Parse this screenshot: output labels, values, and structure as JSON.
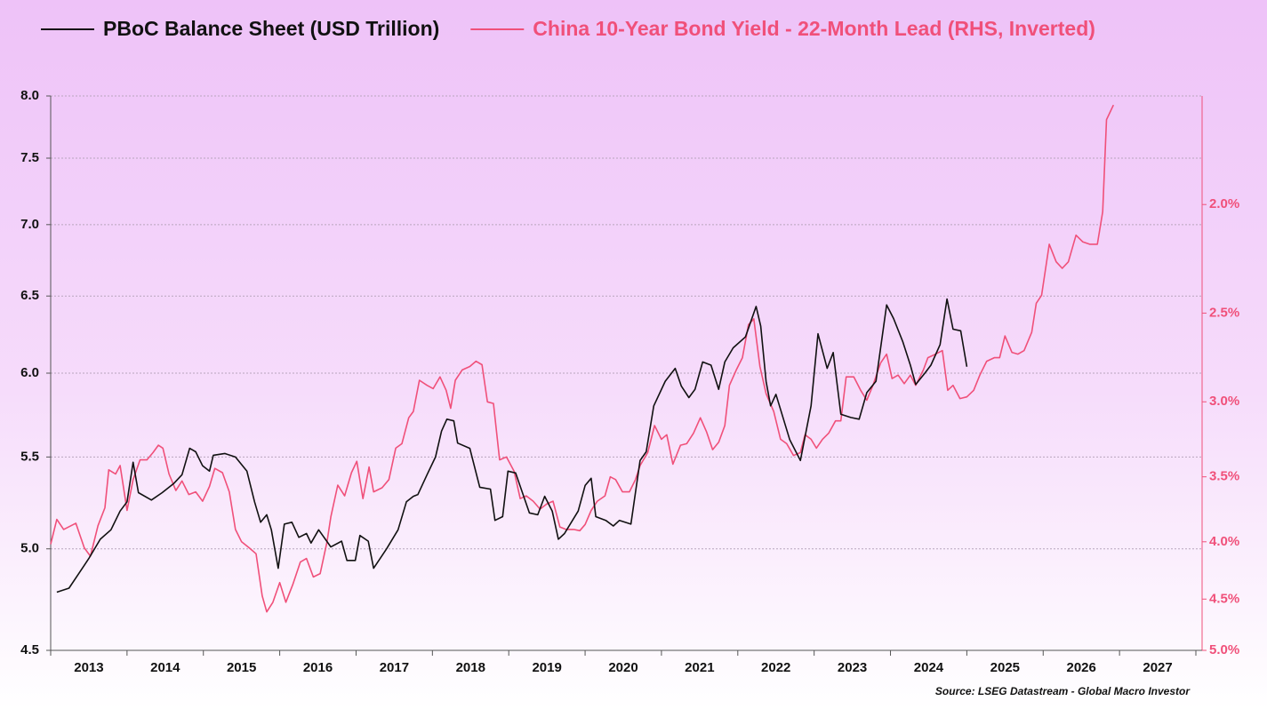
{
  "chart_data": {
    "type": "line",
    "source": "Source: LSEG Datastream - Global Macro Investor",
    "legend": "top",
    "grid": true,
    "xlim": [
      2013,
      2028
    ],
    "xticks": [
      2013,
      2014,
      2015,
      2016,
      2017,
      2018,
      2019,
      2020,
      2021,
      2022,
      2023,
      2024,
      2025,
      2026,
      2027,
      2028
    ],
    "x_labels": [
      "2013",
      "2014",
      "2015",
      "2016",
      "2017",
      "2018",
      "2019",
      "2020",
      "2021",
      "2022",
      "2023",
      "2024",
      "2025",
      "2026",
      "2027"
    ],
    "ylim": [
      4.5,
      8.0
    ],
    "ylog": true,
    "yticks": [
      4.5,
      {
        "value": 5.0,
        "label": "5.0"
      },
      5.5,
      {
        "value": 6.0,
        "label": "6.0"
      },
      6.5,
      {
        "value": 7.0,
        "label": "7.0"
      },
      7.5,
      {
        "value": 8.0,
        "label": "8.0"
      }
    ],
    "y2lim": [
      1.6,
      5.0
    ],
    "y2_log": true,
    "y2_inverted": true,
    "y2ticks": [
      {
        "value": 2.0,
        "label": "2.0%"
      },
      {
        "value": 2.5,
        "label": "2.5%"
      },
      {
        "value": 3.0,
        "label": "3.0%"
      },
      {
        "value": 3.5,
        "label": "3.5%"
      },
      {
        "value": 4.0,
        "label": "4.0%"
      },
      {
        "value": 4.5,
        "label": "4.5%"
      },
      {
        "value": 5.0,
        "label": "5.0%"
      }
    ],
    "series": [
      {
        "name": "PBoC Balance Sheet (USD Trillion)",
        "color": "#111111",
        "axis": "y",
        "x": [
          2013.08,
          2013.24,
          2013.38,
          2013.5,
          2013.65,
          2013.79,
          2013.91,
          2014.0,
          2014.08,
          2014.15,
          2014.32,
          2014.46,
          2014.61,
          2014.72,
          2014.82,
          2014.9,
          2014.99,
          2015.08,
          2015.13,
          2015.28,
          2015.42,
          2015.57,
          2015.67,
          2015.75,
          2015.83,
          2015.89,
          2015.98,
          2016.06,
          2016.16,
          2016.25,
          2016.35,
          2016.41,
          2016.51,
          2016.67,
          2016.81,
          2016.88,
          2016.99,
          2017.05,
          2017.16,
          2017.23,
          2017.4,
          2017.55,
          2017.66,
          2017.75,
          2017.81,
          2017.93,
          2018.04,
          2018.12,
          2018.19,
          2018.28,
          2018.33,
          2018.49,
          2018.62,
          2018.76,
          2018.82,
          2018.92,
          2018.99,
          2019.09,
          2019.27,
          2019.38,
          2019.47,
          2019.57,
          2019.65,
          2019.73,
          2019.91,
          2020.0,
          2020.08,
          2020.14,
          2020.27,
          2020.37,
          2020.45,
          2020.6,
          2020.72,
          2020.8,
          2020.9,
          2021.05,
          2021.18,
          2021.26,
          2021.36,
          2021.44,
          2021.54,
          2021.65,
          2021.75,
          2021.83,
          2021.94,
          2022.1,
          2022.24,
          2022.3,
          2022.37,
          2022.43,
          2022.5,
          2022.68,
          2022.82,
          2022.96,
          2023.05,
          2023.17,
          2023.25,
          2023.35,
          2023.48,
          2023.59,
          2023.69,
          2023.81,
          2023.95,
          2024.04,
          2024.16,
          2024.26,
          2024.33,
          2024.45,
          2024.53,
          2024.65,
          2024.74,
          2024.82,
          2024.92,
          2025.0
        ],
        "values": [
          4.78,
          4.8,
          4.88,
          4.95,
          5.05,
          5.1,
          5.2,
          5.25,
          5.47,
          5.3,
          5.26,
          5.3,
          5.35,
          5.4,
          5.55,
          5.53,
          5.45,
          5.42,
          5.51,
          5.52,
          5.5,
          5.42,
          5.25,
          5.14,
          5.18,
          5.1,
          4.9,
          5.13,
          5.14,
          5.06,
          5.08,
          5.03,
          5.1,
          5.01,
          5.04,
          4.94,
          4.94,
          5.07,
          5.04,
          4.9,
          5.0,
          5.1,
          5.25,
          5.28,
          5.29,
          5.4,
          5.5,
          5.65,
          5.72,
          5.71,
          5.58,
          5.55,
          5.33,
          5.32,
          5.15,
          5.17,
          5.42,
          5.41,
          5.19,
          5.18,
          5.28,
          5.2,
          5.05,
          5.08,
          5.2,
          5.34,
          5.38,
          5.17,
          5.15,
          5.12,
          5.15,
          5.13,
          5.48,
          5.53,
          5.8,
          5.95,
          6.03,
          5.92,
          5.85,
          5.9,
          6.07,
          6.05,
          5.9,
          6.07,
          6.16,
          6.23,
          6.43,
          6.3,
          5.95,
          5.8,
          5.87,
          5.6,
          5.48,
          5.8,
          6.25,
          6.03,
          6.13,
          5.75,
          5.73,
          5.72,
          5.88,
          5.95,
          6.44,
          6.35,
          6.2,
          6.05,
          5.93,
          6.0,
          6.05,
          6.18,
          6.48,
          6.28,
          6.27,
          6.04
        ]
      },
      {
        "name": "China 10-Year Bond Yield - 22-Month Lead (RHS, Inverted)",
        "color": "#f0507a",
        "axis": "y2",
        "x": [
          2013.0,
          2013.08,
          2013.17,
          2013.33,
          2013.44,
          2013.52,
          2013.62,
          2013.71,
          2013.76,
          2013.85,
          2013.91,
          2014.0,
          2014.08,
          2014.17,
          2014.26,
          2014.34,
          2014.41,
          2014.47,
          2014.55,
          2014.64,
          2014.72,
          2014.81,
          2014.9,
          2014.99,
          2015.08,
          2015.15,
          2015.25,
          2015.34,
          2015.42,
          2015.5,
          2015.6,
          2015.69,
          2015.77,
          2015.83,
          2015.91,
          2016.0,
          2016.08,
          2016.17,
          2016.27,
          2016.35,
          2016.44,
          2016.53,
          2016.62,
          2016.67,
          2016.76,
          2016.85,
          2016.94,
          2017.01,
          2017.09,
          2017.17,
          2017.23,
          2017.34,
          2017.43,
          2017.52,
          2017.6,
          2017.69,
          2017.75,
          2017.83,
          2017.93,
          2018.01,
          2018.1,
          2018.18,
          2018.24,
          2018.3,
          2018.39,
          2018.49,
          2018.57,
          2018.65,
          2018.72,
          2018.8,
          2018.88,
          2018.97,
          2019.07,
          2019.15,
          2019.23,
          2019.32,
          2019.41,
          2019.5,
          2019.58,
          2019.67,
          2019.75,
          2019.85,
          2019.93,
          2020.0,
          2020.08,
          2020.16,
          2020.26,
          2020.33,
          2020.4,
          2020.49,
          2020.58,
          2020.66,
          2020.72,
          2020.82,
          2020.91,
          2021.0,
          2021.07,
          2021.15,
          2021.25,
          2021.33,
          2021.42,
          2021.51,
          2021.59,
          2021.67,
          2021.75,
          2021.83,
          2021.89,
          2021.98,
          2022.06,
          2022.14,
          2022.21,
          2022.29,
          2022.37,
          2022.47,
          2022.56,
          2022.64,
          2022.73,
          2022.82,
          2022.88,
          2022.96,
          2023.03,
          2023.11,
          2023.19,
          2023.28,
          2023.35,
          2023.42,
          2023.52,
          2023.61,
          2023.69,
          2023.77,
          2023.87,
          2023.95,
          2024.02,
          2024.1,
          2024.18,
          2024.26,
          2024.33,
          2024.43,
          2024.49,
          2024.59,
          2024.68,
          2024.75,
          2024.82,
          2024.91,
          2025.0,
          2025.09,
          2025.17,
          2025.26,
          2025.36,
          2025.43,
          2025.5,
          2025.59,
          2025.67,
          2025.75,
          2025.85,
          2025.91,
          2025.98,
          2026.08,
          2026.17,
          2026.25,
          2026.33,
          2026.43,
          2026.52,
          2026.61,
          2026.71,
          2026.78,
          2026.83,
          2026.92
        ],
        "values": [
          4.02,
          3.82,
          3.9,
          3.85,
          4.05,
          4.12,
          3.87,
          3.73,
          3.45,
          3.48,
          3.42,
          3.75,
          3.52,
          3.38,
          3.38,
          3.33,
          3.28,
          3.3,
          3.48,
          3.6,
          3.53,
          3.63,
          3.61,
          3.68,
          3.57,
          3.44,
          3.47,
          3.61,
          3.9,
          4.0,
          4.05,
          4.1,
          4.47,
          4.62,
          4.53,
          4.35,
          4.53,
          4.37,
          4.17,
          4.14,
          4.3,
          4.27,
          4.0,
          3.8,
          3.56,
          3.64,
          3.47,
          3.39,
          3.66,
          3.43,
          3.61,
          3.58,
          3.52,
          3.3,
          3.27,
          3.1,
          3.06,
          2.87,
          2.9,
          2.92,
          2.85,
          2.93,
          3.04,
          2.87,
          2.81,
          2.79,
          2.76,
          2.78,
          3.0,
          3.01,
          3.38,
          3.36,
          3.46,
          3.66,
          3.64,
          3.68,
          3.74,
          3.7,
          3.68,
          3.88,
          3.9,
          3.9,
          3.91,
          3.86,
          3.75,
          3.68,
          3.64,
          3.5,
          3.52,
          3.61,
          3.61,
          3.52,
          3.42,
          3.33,
          3.15,
          3.24,
          3.21,
          3.41,
          3.28,
          3.27,
          3.2,
          3.1,
          3.19,
          3.31,
          3.26,
          3.15,
          2.9,
          2.81,
          2.74,
          2.56,
          2.53,
          2.79,
          2.95,
          3.06,
          3.24,
          3.27,
          3.35,
          3.33,
          3.21,
          3.24,
          3.3,
          3.24,
          3.2,
          3.12,
          3.12,
          2.85,
          2.85,
          2.93,
          2.99,
          2.9,
          2.77,
          2.72,
          2.86,
          2.84,
          2.89,
          2.84,
          2.9,
          2.81,
          2.74,
          2.72,
          2.7,
          2.93,
          2.9,
          2.98,
          2.97,
          2.93,
          2.84,
          2.76,
          2.74,
          2.74,
          2.62,
          2.71,
          2.72,
          2.7,
          2.6,
          2.45,
          2.41,
          2.17,
          2.25,
          2.28,
          2.25,
          2.13,
          2.16,
          2.17,
          2.17,
          2.03,
          1.68,
          1.63
        ]
      }
    ]
  }
}
